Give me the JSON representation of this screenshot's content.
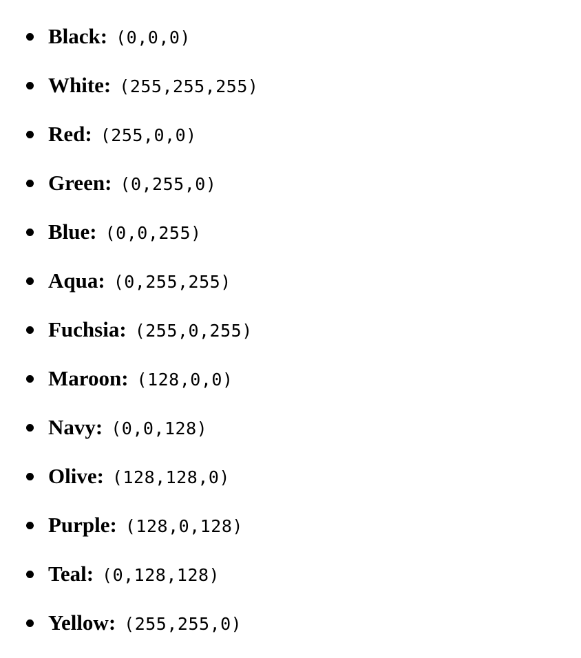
{
  "colors": [
    {
      "label": "Black:",
      "rgb": "(0,0,0)"
    },
    {
      "label": "White:",
      "rgb": "(255,255,255)"
    },
    {
      "label": "Red:",
      "rgb": "(255,0,0)"
    },
    {
      "label": "Green:",
      "rgb": "(0,255,0)"
    },
    {
      "label": "Blue:",
      "rgb": "(0,0,255)"
    },
    {
      "label": "Aqua:",
      "rgb": "(0,255,255)"
    },
    {
      "label": "Fuchsia:",
      "rgb": "(255,0,255)"
    },
    {
      "label": "Maroon:",
      "rgb": "(128,0,0)"
    },
    {
      "label": "Navy:",
      "rgb": "(0,0,128)"
    },
    {
      "label": "Olive:",
      "rgb": "(128,128,0)"
    },
    {
      "label": "Purple:",
      "rgb": "(128,0,128)"
    },
    {
      "label": "Teal:",
      "rgb": "(0,128,128)"
    },
    {
      "label": "Yellow:",
      "rgb": "(255,255,0)"
    }
  ]
}
